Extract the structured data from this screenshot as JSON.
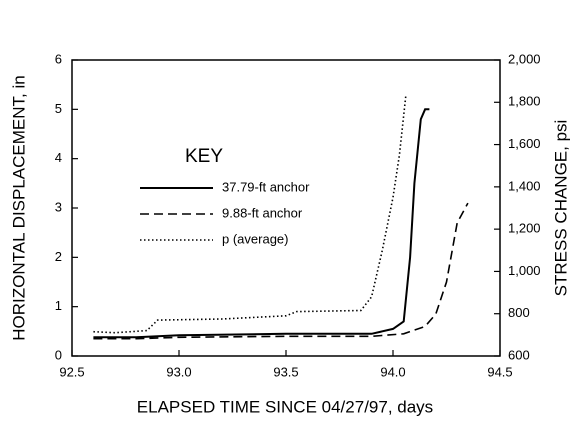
{
  "chart_data": {
    "type": "line",
    "xlabel": "ELAPSED TIME SINCE 04/27/97, days",
    "ylabel": "HORIZONTAL DISPLACEMENT, in",
    "y2label": "STRESS CHANGE, psi",
    "legend_title": "KEY",
    "xlim": [
      92.5,
      94.5
    ],
    "xticks": [
      92.5,
      {
        "value": 93,
        "label": "93.0"
      },
      93.5,
      {
        "value": 94,
        "label": "94.0"
      },
      94.5
    ],
    "ylim": [
      0,
      6
    ],
    "yticks": [
      0,
      1,
      2,
      3,
      4,
      5,
      6
    ],
    "y2lim": [
      600,
      2000
    ],
    "y2ticks": [
      600,
      800,
      {
        "value": 1000,
        "label": "1,000"
      },
      {
        "value": 1200,
        "label": "1,200"
      },
      {
        "value": 1400,
        "label": "1,400"
      },
      {
        "value": 1600,
        "label": "1,600"
      },
      {
        "value": 1800,
        "label": "1,800"
      },
      {
        "value": 2000,
        "label": "2,000"
      }
    ],
    "series": [
      {
        "name": "37.79-ft anchor",
        "color": "#000000",
        "dash": "solid",
        "x": [
          92.6,
          92.8,
          93.0,
          93.5,
          93.9,
          94.0,
          94.05,
          94.08,
          94.1,
          94.13,
          94.15,
          94.17
        ],
        "values": [
          0.38,
          0.38,
          0.42,
          0.45,
          0.45,
          0.55,
          0.7,
          2.0,
          3.5,
          4.8,
          5.0,
          5.0
        ]
      },
      {
        "name": "9.88-ft anchor",
        "color": "#000000",
        "dash": "dashed",
        "x": [
          92.6,
          92.8,
          93.0,
          93.5,
          93.9,
          94.05,
          94.15,
          94.2,
          94.25,
          94.3,
          94.35
        ],
        "values": [
          0.35,
          0.35,
          0.38,
          0.4,
          0.4,
          0.45,
          0.6,
          0.85,
          1.5,
          2.7,
          3.1
        ]
      },
      {
        "name": "p (average)",
        "color": "#000000",
        "dash": "dotted",
        "axis": "y2",
        "x": [
          92.6,
          92.7,
          92.85,
          92.9,
          93.2,
          93.5,
          93.55,
          93.85,
          93.9,
          93.95,
          94.0,
          94.03,
          94.06
        ],
        "values": [
          715,
          710,
          720,
          770,
          775,
          790,
          810,
          815,
          880,
          1100,
          1350,
          1550,
          1830
        ]
      }
    ]
  }
}
